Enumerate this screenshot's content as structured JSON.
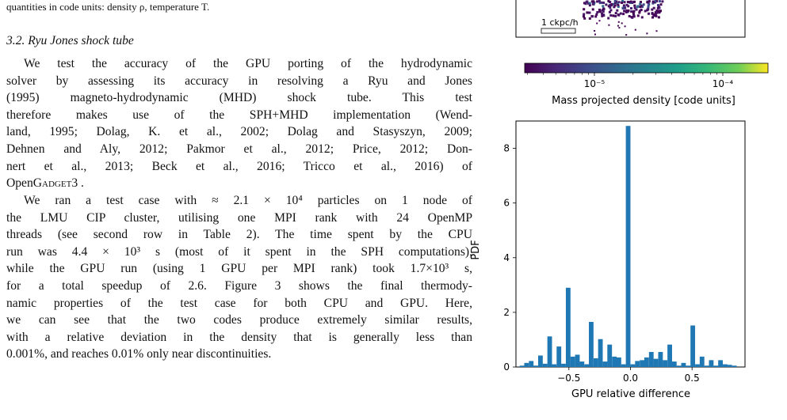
{
  "caption_tail": "quantities in code units: density ρ, temperature T.",
  "section": {
    "number": "3.2.",
    "title": "Ryu Jones shock tube"
  },
  "paragraphs": [
    [
      "We test the accuracy of the GPU porting of the hydrodynamic",
      "solver by assessing its accuracy in resolving a Ryu and Jones",
      "(1995) magneto-hydrodynamic (MHD) shock tube. This test",
      "therefore makes use of the SPH+MHD implementation (Wend-",
      "land, 1995; Dolag, K. et al., 2002; Dolag and Stasyszyn, 2009;",
      "Dehnen and Aly, 2012; Pakmor et al., 2012; Price, 2012; Don-",
      "nert et al., 2013; Beck et al., 2016; Tricco et al., 2016) of",
      "OpenGadget3 ."
    ],
    [
      "We ran a test case with ≈ 2.1 × 10⁴ particles on 1 node of",
      "the LMU CIP cluster, utilising one MPI rank with 24 OpenMP",
      "threads (see second row in Table 2). The time spent by the CPU",
      "run was 4.4 × 10³ s (most of it spent in the SPH computations),",
      "while the GPU run (using 1 GPU per MPI rank) took 1.7×10³ s,",
      "for a total speedup of 2.6. Figure 3 shows the final thermody-",
      "namic properties of the test case for both CPU and GPU. Here,",
      "we can see that the two codes produce extremely similar results,",
      "with a relative deviation in the density that is generally less than",
      "0.001%, and reaches 0.01% only near discontinuities."
    ]
  ],
  "map_panel": {
    "scale_bar_label": "1 ckpc/h"
  },
  "colorbar": {
    "label": "Mass projected density [code units]",
    "tick_labels": [
      "10⁻⁵",
      "10⁻⁴"
    ],
    "colormap": "viridis"
  },
  "chart_data": {
    "type": "bar",
    "xlabel": "GPU relative difference",
    "ylabel": "PDF",
    "xlim": [
      -0.93,
      0.93
    ],
    "ylim": [
      0,
      9.0
    ],
    "xticks": [
      -0.5,
      0.0,
      0.5
    ],
    "xtick_labels": [
      "−0.5",
      "0.0",
      "0.5"
    ],
    "yticks": [
      0,
      2,
      4,
      6,
      8
    ],
    "ytick_labels": [
      "0",
      "2",
      "4",
      "6",
      "8"
    ],
    "bar_color": "#1f77b4",
    "bin_width": 0.0375,
    "bin_centers": [
      -0.881,
      -0.844,
      -0.806,
      -0.769,
      -0.731,
      -0.694,
      -0.656,
      -0.619,
      -0.581,
      -0.544,
      -0.506,
      -0.469,
      -0.431,
      -0.394,
      -0.356,
      -0.319,
      -0.281,
      -0.244,
      -0.206,
      -0.169,
      -0.131,
      -0.094,
      -0.056,
      -0.019,
      0.019,
      0.056,
      0.094,
      0.131,
      0.169,
      0.206,
      0.244,
      0.281,
      0.319,
      0.356,
      0.394,
      0.431,
      0.469,
      0.506,
      0.544,
      0.581,
      0.619,
      0.656,
      0.694,
      0.731,
      0.769,
      0.806,
      0.844
    ],
    "values": [
      0.05,
      0.15,
      0.22,
      0.05,
      0.42,
      0.12,
      1.12,
      0.1,
      0.75,
      0.12,
      2.9,
      0.38,
      0.45,
      0.2,
      0.1,
      1.65,
      0.32,
      1.02,
      0.2,
      0.82,
      0.38,
      0.35,
      0.1,
      8.82,
      0.1,
      0.22,
      0.25,
      0.35,
      0.55,
      0.3,
      0.55,
      0.25,
      0.82,
      0.2,
      0.05,
      0.15,
      0.05,
      1.52,
      0.1,
      0.38,
      0.05,
      0.25,
      0.05,
      0.25,
      0.1,
      0.08,
      0.05
    ]
  }
}
